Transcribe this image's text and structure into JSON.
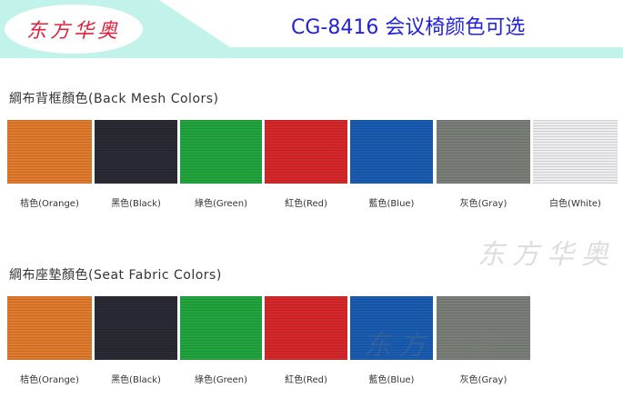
{
  "header": {
    "logo": "东方华奥",
    "title": "CG-8416 会议椅颜色可选"
  },
  "back_mesh": {
    "title": "綱布背框顏色(Back Mesh Colors)",
    "swatches": [
      {
        "label": "桔色(Orange)",
        "color": "#e07a2c"
      },
      {
        "label": "黑色(Black)",
        "color": "#2a2a34"
      },
      {
        "label": "綠色(Green)",
        "color": "#22a43e"
      },
      {
        "label": "紅色(Red)",
        "color": "#d6282a"
      },
      {
        "label": "藍色(Blue)",
        "color": "#1a5cb2"
      },
      {
        "label": "灰色(Gray)",
        "color": "#7b7f79"
      },
      {
        "label": "白色(White)",
        "color": "#ededf0"
      }
    ]
  },
  "seat_fabric": {
    "title": "綱布座墊顏色(Seat Fabric Colors)",
    "swatches": [
      {
        "label": "桔色(Orange)",
        "color": "#e07a2c"
      },
      {
        "label": "黑色(Black)",
        "color": "#2a2a34"
      },
      {
        "label": "綠色(Green)",
        "color": "#22a43e"
      },
      {
        "label": "紅色(Red)",
        "color": "#d6282a"
      },
      {
        "label": "藍色(Blue)",
        "color": "#1a5cb2"
      },
      {
        "label": "灰色(Gray)",
        "color": "#7b7f79"
      }
    ]
  },
  "watermark": "东方华奥"
}
